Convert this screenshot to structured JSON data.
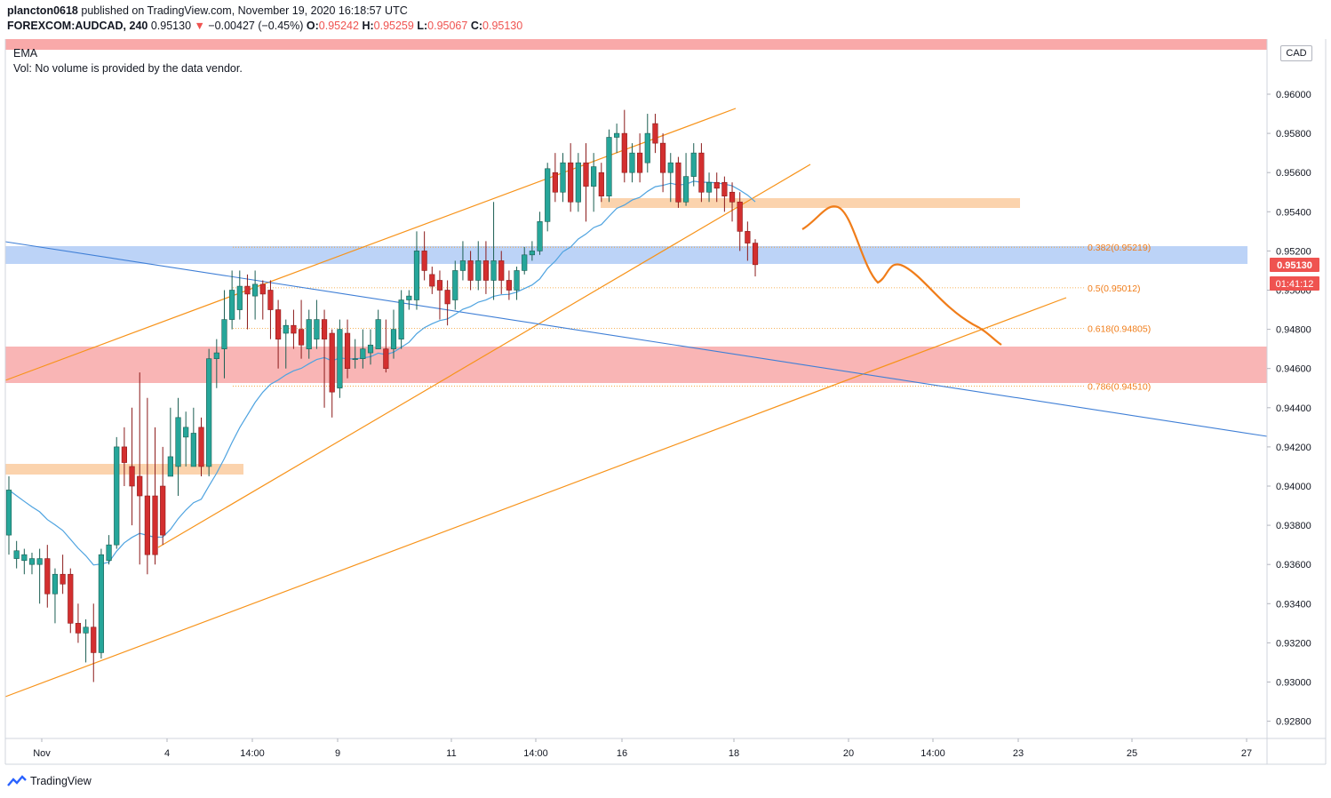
{
  "header": {
    "author": "plancton0618",
    "published_text": "published on TradingView.com, November 19, 2020 16:18:57 UTC",
    "symbol": "FOREXCOM:AUDCAD, 240",
    "last": "0.95130",
    "arrow": "▼",
    "change": "−0.00427 (−0.45%)",
    "o_label": "O:",
    "o_val": "0.95242",
    "h_label": "H:",
    "h_val": "0.95259",
    "l_label": "L:",
    "l_val": "0.95067",
    "c_label": "C:",
    "c_val": "0.95130"
  },
  "legend": {
    "ema": "EMA",
    "vol": "Vol: No volume is provided by the data vendor."
  },
  "currency_badge": "CAD",
  "price_label": "0.95130",
  "countdown_label": "01:41:12",
  "footer": {
    "brand": "TradingView"
  },
  "colors": {
    "up": "#26a69a",
    "down": "#ef5350",
    "up_dark": "#1b5e52",
    "down_dark": "#b71c1c",
    "ema": "#4ea3e0",
    "trend_orange": "#f7931a",
    "fib": "#f59b27",
    "zone_red": "#f9a9a9",
    "zone_blue": "#bcd3f7",
    "zone_orange": "#fbd3ad",
    "downtrend": "#3f7fd6"
  },
  "chart_data": {
    "type": "candlestick",
    "y_axis": {
      "ticks": [
        "0.96000",
        "0.95800",
        "0.95600",
        "0.95400",
        "0.95200",
        "0.95000",
        "0.94800",
        "0.94600",
        "0.94400",
        "0.94200",
        "0.94000",
        "0.93800",
        "0.93600",
        "0.93400",
        "0.93200",
        "0.93000",
        "0.92800"
      ]
    },
    "x_axis": {
      "ticks": [
        "Nov",
        "4",
        "14:00",
        "9",
        "11",
        "14:00",
        "16",
        "18",
        "20",
        "14:00",
        "23",
        "25",
        "27"
      ]
    },
    "fib_levels": [
      {
        "label": "0.382(0.95219)",
        "price": 0.95219
      },
      {
        "label": "0.5(0.95012)",
        "price": 0.95012
      },
      {
        "label": "0.618(0.94805)",
        "price": 0.94805
      },
      {
        "label": "0.786(0.94510)",
        "price": 0.9451
      }
    ],
    "candles": [
      [
        0.9375,
        0.9398,
        0.9365,
        0.9405
      ],
      [
        0.9363,
        0.9367,
        0.9358,
        0.9372
      ],
      [
        0.9362,
        0.9365,
        0.9355,
        0.9368
      ],
      [
        0.936,
        0.9363,
        0.9355,
        0.9366
      ],
      [
        0.936,
        0.9363,
        0.934,
        0.9368
      ],
      [
        0.9363,
        0.9345,
        0.9338,
        0.937
      ],
      [
        0.9345,
        0.9355,
        0.933,
        0.9358
      ],
      [
        0.9355,
        0.935,
        0.9345,
        0.9365
      ],
      [
        0.9355,
        0.933,
        0.9325,
        0.9358
      ],
      [
        0.933,
        0.9325,
        0.932,
        0.934
      ],
      [
        0.9325,
        0.9328,
        0.931,
        0.9332
      ],
      [
        0.9328,
        0.9315,
        0.93,
        0.934
      ],
      [
        0.9315,
        0.9365,
        0.9312,
        0.9368
      ],
      [
        0.9362,
        0.937,
        0.936,
        0.9375
      ],
      [
        0.937,
        0.942,
        0.9368,
        0.9425
      ],
      [
        0.942,
        0.9412,
        0.94,
        0.943
      ],
      [
        0.941,
        0.94,
        0.938,
        0.944
      ],
      [
        0.9405,
        0.9395,
        0.936,
        0.9458
      ],
      [
        0.9395,
        0.9365,
        0.9355,
        0.9445
      ],
      [
        0.9395,
        0.9365,
        0.936,
        0.943
      ],
      [
        0.94,
        0.9375,
        0.937,
        0.942
      ],
      [
        0.9405,
        0.9415,
        0.9405,
        0.944
      ],
      [
        0.941,
        0.9435,
        0.9395,
        0.9445
      ],
      [
        0.9425,
        0.943,
        0.941,
        0.9438
      ],
      [
        0.941,
        0.9427,
        0.941,
        0.944
      ],
      [
        0.943,
        0.941,
        0.9405,
        0.9435
      ],
      [
        0.941,
        0.9465,
        0.9405,
        0.947
      ],
      [
        0.9465,
        0.9468,
        0.945,
        0.9475
      ],
      [
        0.947,
        0.9485,
        0.9455,
        0.95
      ],
      [
        0.9485,
        0.95,
        0.948,
        0.951
      ],
      [
        0.949,
        0.9502,
        0.9485,
        0.951
      ],
      [
        0.9502,
        0.9498,
        0.948,
        0.9508
      ],
      [
        0.9497,
        0.9503,
        0.9485,
        0.951
      ],
      [
        0.9503,
        0.9498,
        0.9485,
        0.9505
      ],
      [
        0.95,
        0.949,
        0.9475,
        0.9505
      ],
      [
        0.949,
        0.9475,
        0.946,
        0.9495
      ],
      [
        0.9478,
        0.9482,
        0.946,
        0.9485
      ],
      [
        0.9482,
        0.9478,
        0.947,
        0.949
      ],
      [
        0.948,
        0.9472,
        0.9465,
        0.9495
      ],
      [
        0.947,
        0.9485,
        0.9465,
        0.949
      ],
      [
        0.9475,
        0.9485,
        0.947,
        0.9495
      ],
      [
        0.9485,
        0.9475,
        0.944,
        0.949
      ],
      [
        0.9478,
        0.9448,
        0.9435,
        0.948
      ],
      [
        0.945,
        0.948,
        0.9445,
        0.9485
      ],
      [
        0.9478,
        0.946,
        0.9455,
        0.9485
      ],
      [
        0.9465,
        0.9465,
        0.946,
        0.9475
      ],
      [
        0.9465,
        0.947,
        0.946,
        0.948
      ],
      [
        0.9468,
        0.9472,
        0.9462,
        0.948
      ],
      [
        0.947,
        0.9485,
        0.947,
        0.949
      ],
      [
        0.947,
        0.946,
        0.9458,
        0.9485
      ],
      [
        0.947,
        0.948,
        0.9465,
        0.949
      ],
      [
        0.9475,
        0.9495,
        0.947,
        0.95
      ],
      [
        0.9495,
        0.9497,
        0.949,
        0.95
      ],
      [
        0.9495,
        0.952,
        0.949,
        0.953
      ],
      [
        0.952,
        0.951,
        0.9505,
        0.953
      ],
      [
        0.9508,
        0.9502,
        0.9498,
        0.9512
      ],
      [
        0.9505,
        0.95,
        0.9485,
        0.951
      ],
      [
        0.95,
        0.9493,
        0.9482,
        0.9505
      ],
      [
        0.9495,
        0.951,
        0.949,
        0.9515
      ],
      [
        0.951,
        0.9515,
        0.9505,
        0.9525
      ],
      [
        0.9515,
        0.9505,
        0.95,
        0.952
      ],
      [
        0.9505,
        0.9515,
        0.95,
        0.9525
      ],
      [
        0.9515,
        0.9505,
        0.9498,
        0.9525
      ],
      [
        0.9505,
        0.9515,
        0.9495,
        0.9545
      ],
      [
        0.9515,
        0.9505,
        0.9498,
        0.952
      ],
      [
        0.9505,
        0.95,
        0.9495,
        0.951
      ],
      [
        0.95,
        0.951,
        0.9495,
        0.9512
      ],
      [
        0.951,
        0.9518,
        0.9508,
        0.9522
      ],
      [
        0.9518,
        0.952,
        0.9515,
        0.9525
      ],
      [
        0.952,
        0.9535,
        0.9518,
        0.954
      ],
      [
        0.9535,
        0.9562,
        0.953,
        0.9565
      ],
      [
        0.956,
        0.955,
        0.9545,
        0.957
      ],
      [
        0.955,
        0.9565,
        0.9545,
        0.957
      ],
      [
        0.9565,
        0.9545,
        0.954,
        0.9575
      ],
      [
        0.9545,
        0.9565,
        0.954,
        0.957
      ],
      [
        0.9565,
        0.9553,
        0.9535,
        0.9575
      ],
      [
        0.9553,
        0.9563,
        0.954,
        0.957
      ],
      [
        0.956,
        0.9548,
        0.9545,
        0.9565
      ],
      [
        0.9548,
        0.9578,
        0.9545,
        0.9582
      ],
      [
        0.9578,
        0.958,
        0.957,
        0.9585
      ],
      [
        0.958,
        0.956,
        0.9555,
        0.9592
      ],
      [
        0.956,
        0.957,
        0.9555,
        0.9575
      ],
      [
        0.957,
        0.956,
        0.9555,
        0.958
      ],
      [
        0.9565,
        0.958,
        0.956,
        0.959
      ],
      [
        0.9585,
        0.9575,
        0.957,
        0.959
      ],
      [
        0.9575,
        0.956,
        0.955,
        0.958
      ],
      [
        0.956,
        0.9565,
        0.9545,
        0.957
      ],
      [
        0.9565,
        0.9545,
        0.9542,
        0.9568
      ],
      [
        0.9545,
        0.9558,
        0.9543,
        0.957
      ],
      [
        0.9558,
        0.957,
        0.9553,
        0.9575
      ],
      [
        0.957,
        0.955,
        0.9545,
        0.9575
      ],
      [
        0.955,
        0.9555,
        0.9545,
        0.956
      ],
      [
        0.9555,
        0.9552,
        0.9545,
        0.956
      ],
      [
        0.9555,
        0.9548,
        0.954,
        0.9558
      ],
      [
        0.955,
        0.9545,
        0.9535,
        0.9555
      ],
      [
        0.9545,
        0.953,
        0.952,
        0.955
      ],
      [
        0.953,
        0.9524,
        0.9515,
        0.9535
      ],
      [
        0.9524,
        0.9513,
        0.9507,
        0.9526
      ]
    ],
    "forecast_path": [
      [
        0.9535
      ],
      [
        0.954
      ],
      [
        0.9525
      ],
      [
        0.9505
      ],
      [
        0.9508
      ],
      [
        0.9495
      ],
      [
        0.9482
      ],
      [
        0.9472
      ]
    ]
  }
}
